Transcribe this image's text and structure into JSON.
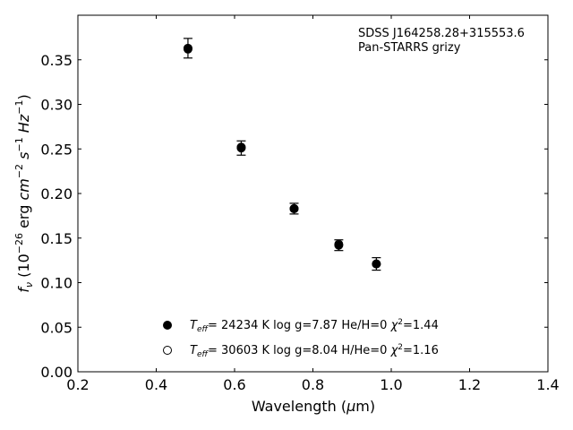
{
  "chart_data": {
    "type": "scatter",
    "xlabel": "Wavelength (μm)",
    "ylabel": "f_ν (10^-26 erg cm^-2 s^-1 Hz^-1)",
    "xlim": [
      0.2,
      1.4
    ],
    "ylim": [
      0.0,
      0.4
    ],
    "x_ticks": [
      "0.2",
      "0.4",
      "0.6",
      "0.8",
      "1.0",
      "1.2",
      "1.4"
    ],
    "y_ticks": [
      "0.00",
      "0.05",
      "0.10",
      "0.15",
      "0.20",
      "0.25",
      "0.30",
      "0.35"
    ],
    "grid": false,
    "annotations": [
      "SDSS J164258.28+315553.6",
      "Pan-STARRS grizy"
    ],
    "observed": {
      "x": [
        0.481,
        0.617,
        0.752,
        0.866,
        0.962
      ],
      "y": [
        0.363,
        0.251,
        0.183,
        0.142,
        0.121
      ],
      "yerr": [
        0.011,
        0.008,
        0.006,
        0.006,
        0.007
      ]
    },
    "series": [
      {
        "marker": "filled",
        "label": "T_eff= 24234 K  log g=7.87  He/H=0  χ²=1.44",
        "x": [
          0.481,
          0.617,
          0.752,
          0.866,
          0.962
        ],
        "y": [
          0.362,
          0.252,
          0.183,
          0.142,
          0.121
        ]
      },
      {
        "marker": "open",
        "label": "T_eff= 30603 K  log g=8.04  H/He=0  χ²=1.16",
        "x": [
          0.481,
          0.617,
          0.752,
          0.866,
          0.962
        ],
        "y": [
          0.363,
          0.251,
          0.183,
          0.143,
          0.121
        ]
      }
    ]
  }
}
